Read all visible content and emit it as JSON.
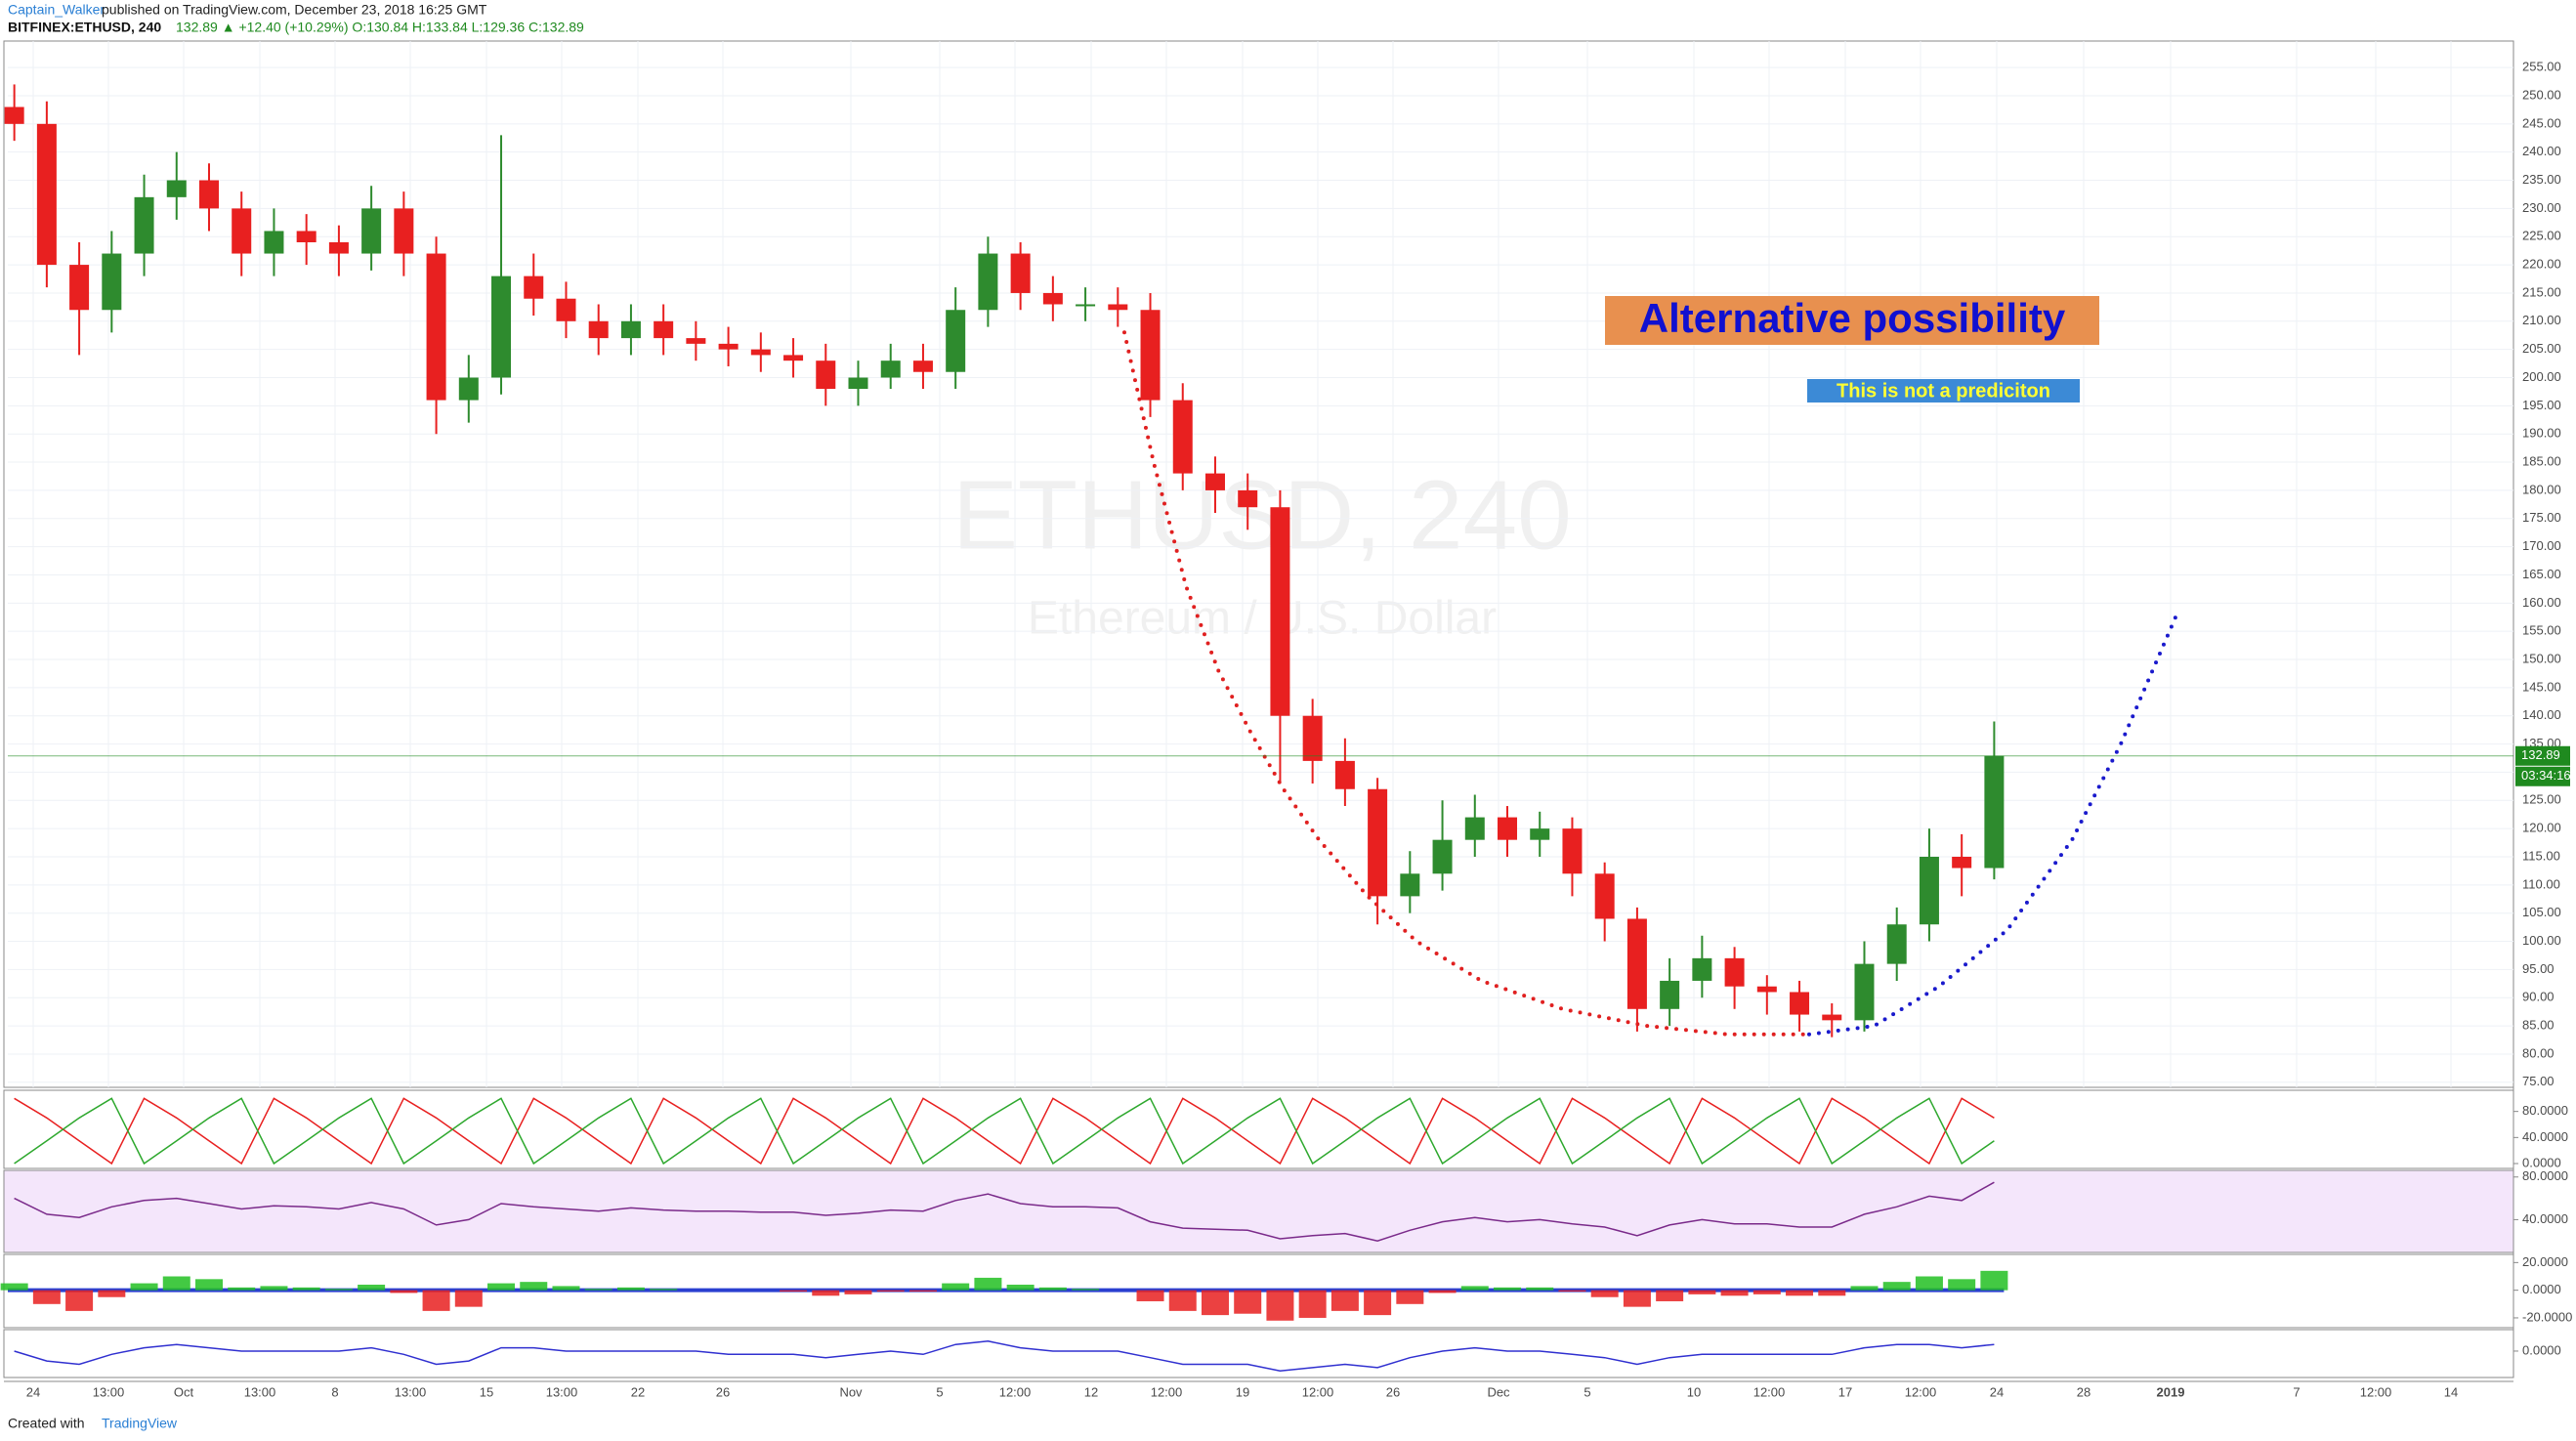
{
  "header": {
    "author": "Captain_Walker",
    "published": "published on TradingView.com, December 23, 2018 16:25 GMT",
    "symbol": "BITFINEX:ETHUSD, 240",
    "quote": "132.89 ▲ +12.40 (+10.29%) O:130.84 H:133.84 L:129.36 C:132.89"
  },
  "footer": {
    "created": "Created with",
    "brand": "TradingView"
  },
  "chart_data": [
    {
      "type": "candlestick",
      "watermark": "ETHUSD, 240",
      "watermark_subtitle": "Ethereum / U.S. Dollar",
      "x_labels": [
        "24",
        "13:00",
        "Oct",
        "13:00",
        "8",
        "13:00",
        "15",
        "13:00",
        "22",
        "26",
        "Nov",
        "5",
        "12:00",
        "12",
        "12:00",
        "19",
        "12:00",
        "26",
        "Dec",
        "5",
        "10",
        "12:00",
        "17",
        "12:00",
        "24",
        "28",
        "2019",
        "7",
        "12:00",
        "14"
      ],
      "xlim": [
        -0.2,
        77
      ],
      "ylim": [
        74.1,
        259.7
      ],
      "yticks": [
        {
          "value": 75,
          "label": "75.00"
        },
        {
          "value": 80,
          "label": "80.00"
        },
        {
          "value": 85,
          "label": "85.00"
        },
        {
          "value": 90,
          "label": "90.00"
        },
        {
          "value": 95,
          "label": "95.00"
        },
        {
          "value": 100,
          "label": "100.00"
        },
        {
          "value": 105,
          "label": "105.00"
        },
        {
          "value": 110,
          "label": "110.00"
        },
        {
          "value": 115,
          "label": "115.00"
        },
        {
          "value": 120,
          "label": "120.00"
        },
        {
          "value": 125,
          "label": "125.00"
        },
        {
          "value": 130,
          "label": "130.00"
        },
        {
          "value": 135,
          "label": "135.00"
        },
        {
          "value": 140,
          "label": "140.00"
        },
        {
          "value": 145,
          "label": "145.00"
        },
        {
          "value": 150,
          "label": "150.00"
        },
        {
          "value": 155,
          "label": "155.00"
        },
        {
          "value": 160,
          "label": "160.00"
        },
        {
          "value": 165,
          "label": "165.00"
        },
        {
          "value": 170,
          "label": "170.00"
        },
        {
          "value": 175,
          "label": "175.00"
        },
        {
          "value": 180,
          "label": "180.00"
        },
        {
          "value": 185,
          "label": "185.00"
        },
        {
          "value": 190,
          "label": "190.00"
        },
        {
          "value": 195,
          "label": "195.00"
        },
        {
          "value": 200,
          "label": "200.00"
        },
        {
          "value": 205,
          "label": "205.00"
        },
        {
          "value": 210,
          "label": "210.00"
        },
        {
          "value": 215,
          "label": "215.00"
        },
        {
          "value": 220,
          "label": "220.00"
        },
        {
          "value": 225,
          "label": "225.00"
        },
        {
          "value": 230,
          "label": "230.00"
        },
        {
          "value": 235,
          "label": "235.00"
        },
        {
          "value": 240,
          "label": "240.00"
        },
        {
          "value": 245,
          "label": "245.00"
        },
        {
          "value": 250,
          "label": "250.00"
        },
        {
          "value": 255,
          "label": "255.00"
        }
      ],
      "grid": true,
      "up_color": "#2e8b2e",
      "down_color": "#e82020",
      "open": [
        248,
        245,
        220,
        212,
        222,
        232,
        235,
        230,
        222,
        226,
        224,
        222,
        230,
        222,
        196,
        200,
        218,
        214,
        210,
        207,
        210,
        207,
        206,
        205,
        204,
        203,
        198,
        200,
        203,
        201,
        212,
        222,
        215,
        213,
        213,
        212,
        196,
        183,
        180,
        177,
        140,
        132,
        127,
        108,
        112,
        118,
        122,
        118,
        120,
        112,
        104,
        88,
        93,
        97,
        92,
        91,
        87,
        86,
        96,
        103,
        115,
        113
      ],
      "high": [
        252,
        249,
        224,
        226,
        236,
        240,
        238,
        233,
        230,
        229,
        227,
        234,
        233,
        225,
        204,
        243,
        222,
        217,
        213,
        213,
        213,
        210,
        209,
        208,
        207,
        206,
        203,
        206,
        206,
        216,
        225,
        224,
        218,
        216,
        216,
        215,
        199,
        186,
        183,
        180,
        143,
        136,
        129,
        116,
        125,
        126,
        124,
        123,
        122,
        114,
        106,
        97,
        101,
        99,
        94,
        93,
        89,
        100,
        106,
        120,
        119,
        139
      ],
      "low": [
        242,
        216,
        204,
        208,
        218,
        228,
        226,
        218,
        218,
        220,
        218,
        219,
        218,
        190,
        192,
        197,
        211,
        207,
        204,
        204,
        204,
        203,
        202,
        201,
        200,
        195,
        195,
        198,
        198,
        198,
        209,
        212,
        210,
        210,
        209,
        193,
        180,
        176,
        173,
        128,
        128,
        124,
        103,
        105,
        109,
        115,
        115,
        115,
        108,
        100,
        84,
        85,
        90,
        88,
        87,
        84,
        83,
        84,
        93,
        100,
        108,
        111
      ],
      "close": [
        245,
        220,
        212,
        222,
        232,
        235,
        230,
        222,
        226,
        224,
        222,
        230,
        222,
        196,
        200,
        218,
        214,
        210,
        207,
        210,
        207,
        206,
        205,
        204,
        203,
        198,
        200,
        203,
        201,
        212,
        222,
        215,
        213,
        213,
        212,
        196,
        183,
        180,
        177,
        140,
        132,
        127,
        108,
        112,
        118,
        122,
        118,
        120,
        112,
        104,
        88,
        93,
        97,
        92,
        91,
        87,
        86,
        96,
        103,
        115,
        113,
        132.89
      ],
      "last_price": {
        "value": 132.89,
        "label": "132.89"
      },
      "countdown": "03:34:16",
      "last_color": "#1f8a1f",
      "projection": [
        {
          "color": "#e02020",
          "x": [
            34.2,
            35.1,
            36.1,
            37.1,
            38.1,
            39.1,
            40.2,
            41.7,
            43.2,
            45.2,
            47.7,
            50.3,
            52.8,
            55.3
          ],
          "values": [
            208,
            185,
            163,
            148,
            137,
            127,
            118,
            108,
            100,
            93,
            88,
            85,
            83.5,
            83.5
          ]
        },
        {
          "color": "#1a1acc",
          "x": [
            55.3,
            57.3,
            59.3,
            61.4,
            63.4,
            64.9,
            66.7
          ],
          "values": [
            83.5,
            85,
            92,
            102,
            118,
            135,
            159
          ]
        }
      ],
      "annotations": [
        {
          "text": "Alternative possibility",
          "color": "#1010d0",
          "background": "#e8904f"
        },
        {
          "text": "This is not a prediciton",
          "color": "#ffff33",
          "background": "#3c8ad6"
        }
      ]
    },
    {
      "type": "line",
      "ylim": [
        -7.5,
        112.5
      ],
      "yticks": [
        {
          "value": 80,
          "label": "80.0000"
        },
        {
          "value": 40,
          "label": "40.0000"
        },
        {
          "value": 0,
          "label": "0.0000"
        }
      ],
      "series": [
        {
          "color": "#e82020",
          "values": [
            100,
            70,
            35,
            0,
            100,
            70,
            35,
            0,
            100,
            70,
            35,
            0,
            100,
            70,
            35,
            0,
            100,
            70,
            35,
            0,
            100,
            70,
            35,
            0,
            100,
            70,
            35,
            0,
            100,
            70,
            35,
            0,
            100,
            70,
            35,
            0,
            100,
            70,
            35,
            0,
            100,
            70,
            35,
            0,
            100,
            70,
            35,
            0,
            100,
            70,
            35,
            0,
            100,
            70,
            35,
            0,
            100,
            70,
            35,
            0,
            100,
            70
          ]
        },
        {
          "color": "#2ea82e",
          "values": [
            0,
            35,
            70,
            100,
            0,
            35,
            70,
            100,
            0,
            35,
            70,
            100,
            0,
            35,
            70,
            100,
            0,
            35,
            70,
            100,
            0,
            35,
            70,
            100,
            0,
            35,
            70,
            100,
            0,
            35,
            70,
            100,
            0,
            35,
            70,
            100,
            0,
            35,
            70,
            100,
            0,
            35,
            70,
            100,
            0,
            35,
            70,
            100,
            0,
            35,
            70,
            100,
            0,
            35,
            70,
            100,
            0,
            35,
            70,
            100,
            0,
            35
          ]
        }
      ]
    },
    {
      "type": "line",
      "ylim": [
        9.2,
        86.2
      ],
      "yticks": [
        {
          "value": 80,
          "label": "80.0000"
        },
        {
          "value": 40,
          "label": "40.0000"
        }
      ],
      "color": "#7a2a8a",
      "values": [
        60,
        45,
        42,
        52,
        58,
        60,
        55,
        50,
        53,
        52,
        50,
        56,
        50,
        35,
        40,
        55,
        52,
        50,
        48,
        51,
        49,
        48,
        48,
        47,
        47,
        44,
        46,
        49,
        48,
        58,
        64,
        55,
        52,
        52,
        51,
        38,
        32,
        31,
        30,
        22,
        25,
        27,
        20,
        30,
        38,
        42,
        38,
        40,
        36,
        33,
        25,
        35,
        40,
        36,
        36,
        33,
        33,
        45,
        52,
        62,
        58,
        75
      ]
    },
    {
      "type": "bar",
      "ylim": [
        -27.1,
        25.9
      ],
      "yticks": [
        {
          "value": 20,
          "label": "20.0000"
        },
        {
          "value": 0,
          "label": "0.0000"
        },
        {
          "value": -20,
          "label": "-20.0000"
        }
      ],
      "up_color": "#22c022",
      "down_color": "#e82020",
      "values": [
        5,
        -10,
        -15,
        -5,
        5,
        10,
        8,
        2,
        3,
        2,
        1,
        4,
        -2,
        -15,
        -12,
        5,
        6,
        3,
        1,
        2,
        1,
        0,
        0,
        0,
        -1,
        -4,
        -3,
        -1,
        -1,
        5,
        9,
        4,
        2,
        1,
        0,
        -8,
        -15,
        -18,
        -17,
        -22,
        -20,
        -15,
        -18,
        -10,
        -2,
        3,
        2,
        2,
        -1,
        -5,
        -12,
        -8,
        -3,
        -4,
        -3,
        -4,
        -4,
        3,
        6,
        10,
        8,
        14
      ]
    },
    {
      "type": "line",
      "ylim": [
        -8,
        6.5
      ],
      "yticks": [
        {
          "value": 0,
          "label": "0.0000"
        }
      ],
      "color": "#3030d0",
      "values": [
        0,
        -3,
        -4,
        -1,
        1,
        2,
        1,
        0,
        0,
        0,
        0,
        1,
        -1,
        -4,
        -3,
        1,
        1,
        0,
        0,
        0,
        0,
        0,
        -1,
        -1,
        -1,
        -2,
        -1,
        0,
        -1,
        2,
        3,
        1,
        0,
        0,
        0,
        -2,
        -4,
        -4,
        -4,
        -6,
        -5,
        -4,
        -5,
        -2,
        0,
        1,
        0,
        0,
        -1,
        -2,
        -4,
        -2,
        -1,
        -1,
        -1,
        -1,
        -1,
        1,
        2,
        2,
        1,
        2
      ]
    }
  ]
}
